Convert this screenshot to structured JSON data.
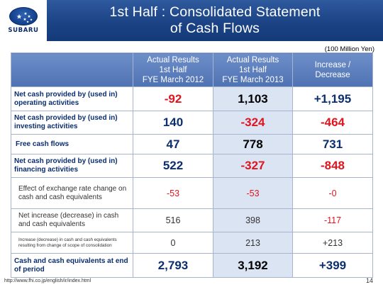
{
  "logo": {
    "text": "SUBARU"
  },
  "title": {
    "line1": "1st Half : Consolidated Statement",
    "line2": "of Cash Flows"
  },
  "unit": "(100 Million Yen)",
  "table": {
    "headers": [
      "",
      "Actual Results\n1st Half\nFYE March 2012",
      "Actual Results\n1st Half\nFYE March 2013",
      "Increase /\nDecrease"
    ],
    "rows": [
      {
        "label": "Net cash provided by  (used in) operating activities",
        "v2012": "-92",
        "v2013": "1,103",
        "diff": "+1,195"
      },
      {
        "label": "Net cash provided by (used in) investing activities",
        "v2012": "140",
        "v2013": "-324",
        "diff": "-464"
      },
      {
        "label": "Free cash flows",
        "v2012": "47",
        "v2013": "778",
        "diff": "731"
      },
      {
        "label": "Net cash provided by (used in) financing activities",
        "v2012": "522",
        "v2013": "-327",
        "diff": "-848"
      },
      {
        "label": "Effect of exchange rate change on cash and cash equivalents",
        "v2012": "-53",
        "v2013": "-53",
        "diff": "-0"
      },
      {
        "label": "Net increase (decrease) in cash and cash equivalents",
        "v2012": "516",
        "v2013": "398",
        "diff": "-117"
      },
      {
        "label": "Increase (decrease) in cash and cash equivalents resulting from change of scope of consolidation",
        "v2012": "0",
        "v2013": "213",
        "diff": "+213"
      },
      {
        "label": "Cash and cash equivalents at end of period",
        "v2012": "2,793",
        "v2013": "3,192",
        "diff": "+399"
      }
    ]
  },
  "footer": {
    "url": "http://www.fhi.co.jp/english/ir/index.html",
    "page": "14"
  },
  "colors": {
    "title_bar": "#1b4385",
    "header_fill": "#5b7fbf",
    "shaded_column": "#dbe4f3",
    "negative": "#e0141e",
    "label_navy": "#0a2e6e"
  }
}
